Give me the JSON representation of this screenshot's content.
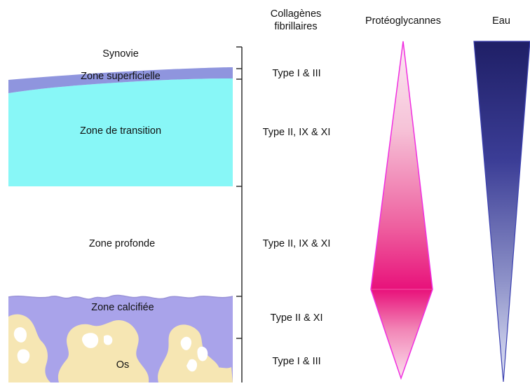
{
  "headers": {
    "collagen_line1": "Collagènes",
    "collagen_line2": "fibrillaires",
    "proteoglycans": "Protéoglycannes",
    "water": "Eau"
  },
  "zones": {
    "synovie": "Synovie",
    "superficielle": "Zone superficielle",
    "transition": "Zone de transition",
    "profonde": "Zone profonde",
    "calcifiee": "Zone calcifiée",
    "os": "Os"
  },
  "collagen_types": {
    "superficielle": "Type I & III",
    "transition": "Type II, IX & XI",
    "profonde": "Type II, IX & XI",
    "calcifiee": "Type II & XI",
    "os": "Type I & III"
  },
  "colors": {
    "superficial_zone": "#8f95de",
    "transition_zone": "#88f7f7",
    "calcified_zone": "#a9a3ea",
    "bone": "#f6e6b3",
    "proteoglycan_dark": "#e8117a",
    "proteoglycan_light": "#fbe1ee",
    "proteoglycan_outline": "#f02fe0",
    "water_dark": "#23236a",
    "water_light": "#dfe3f6"
  }
}
